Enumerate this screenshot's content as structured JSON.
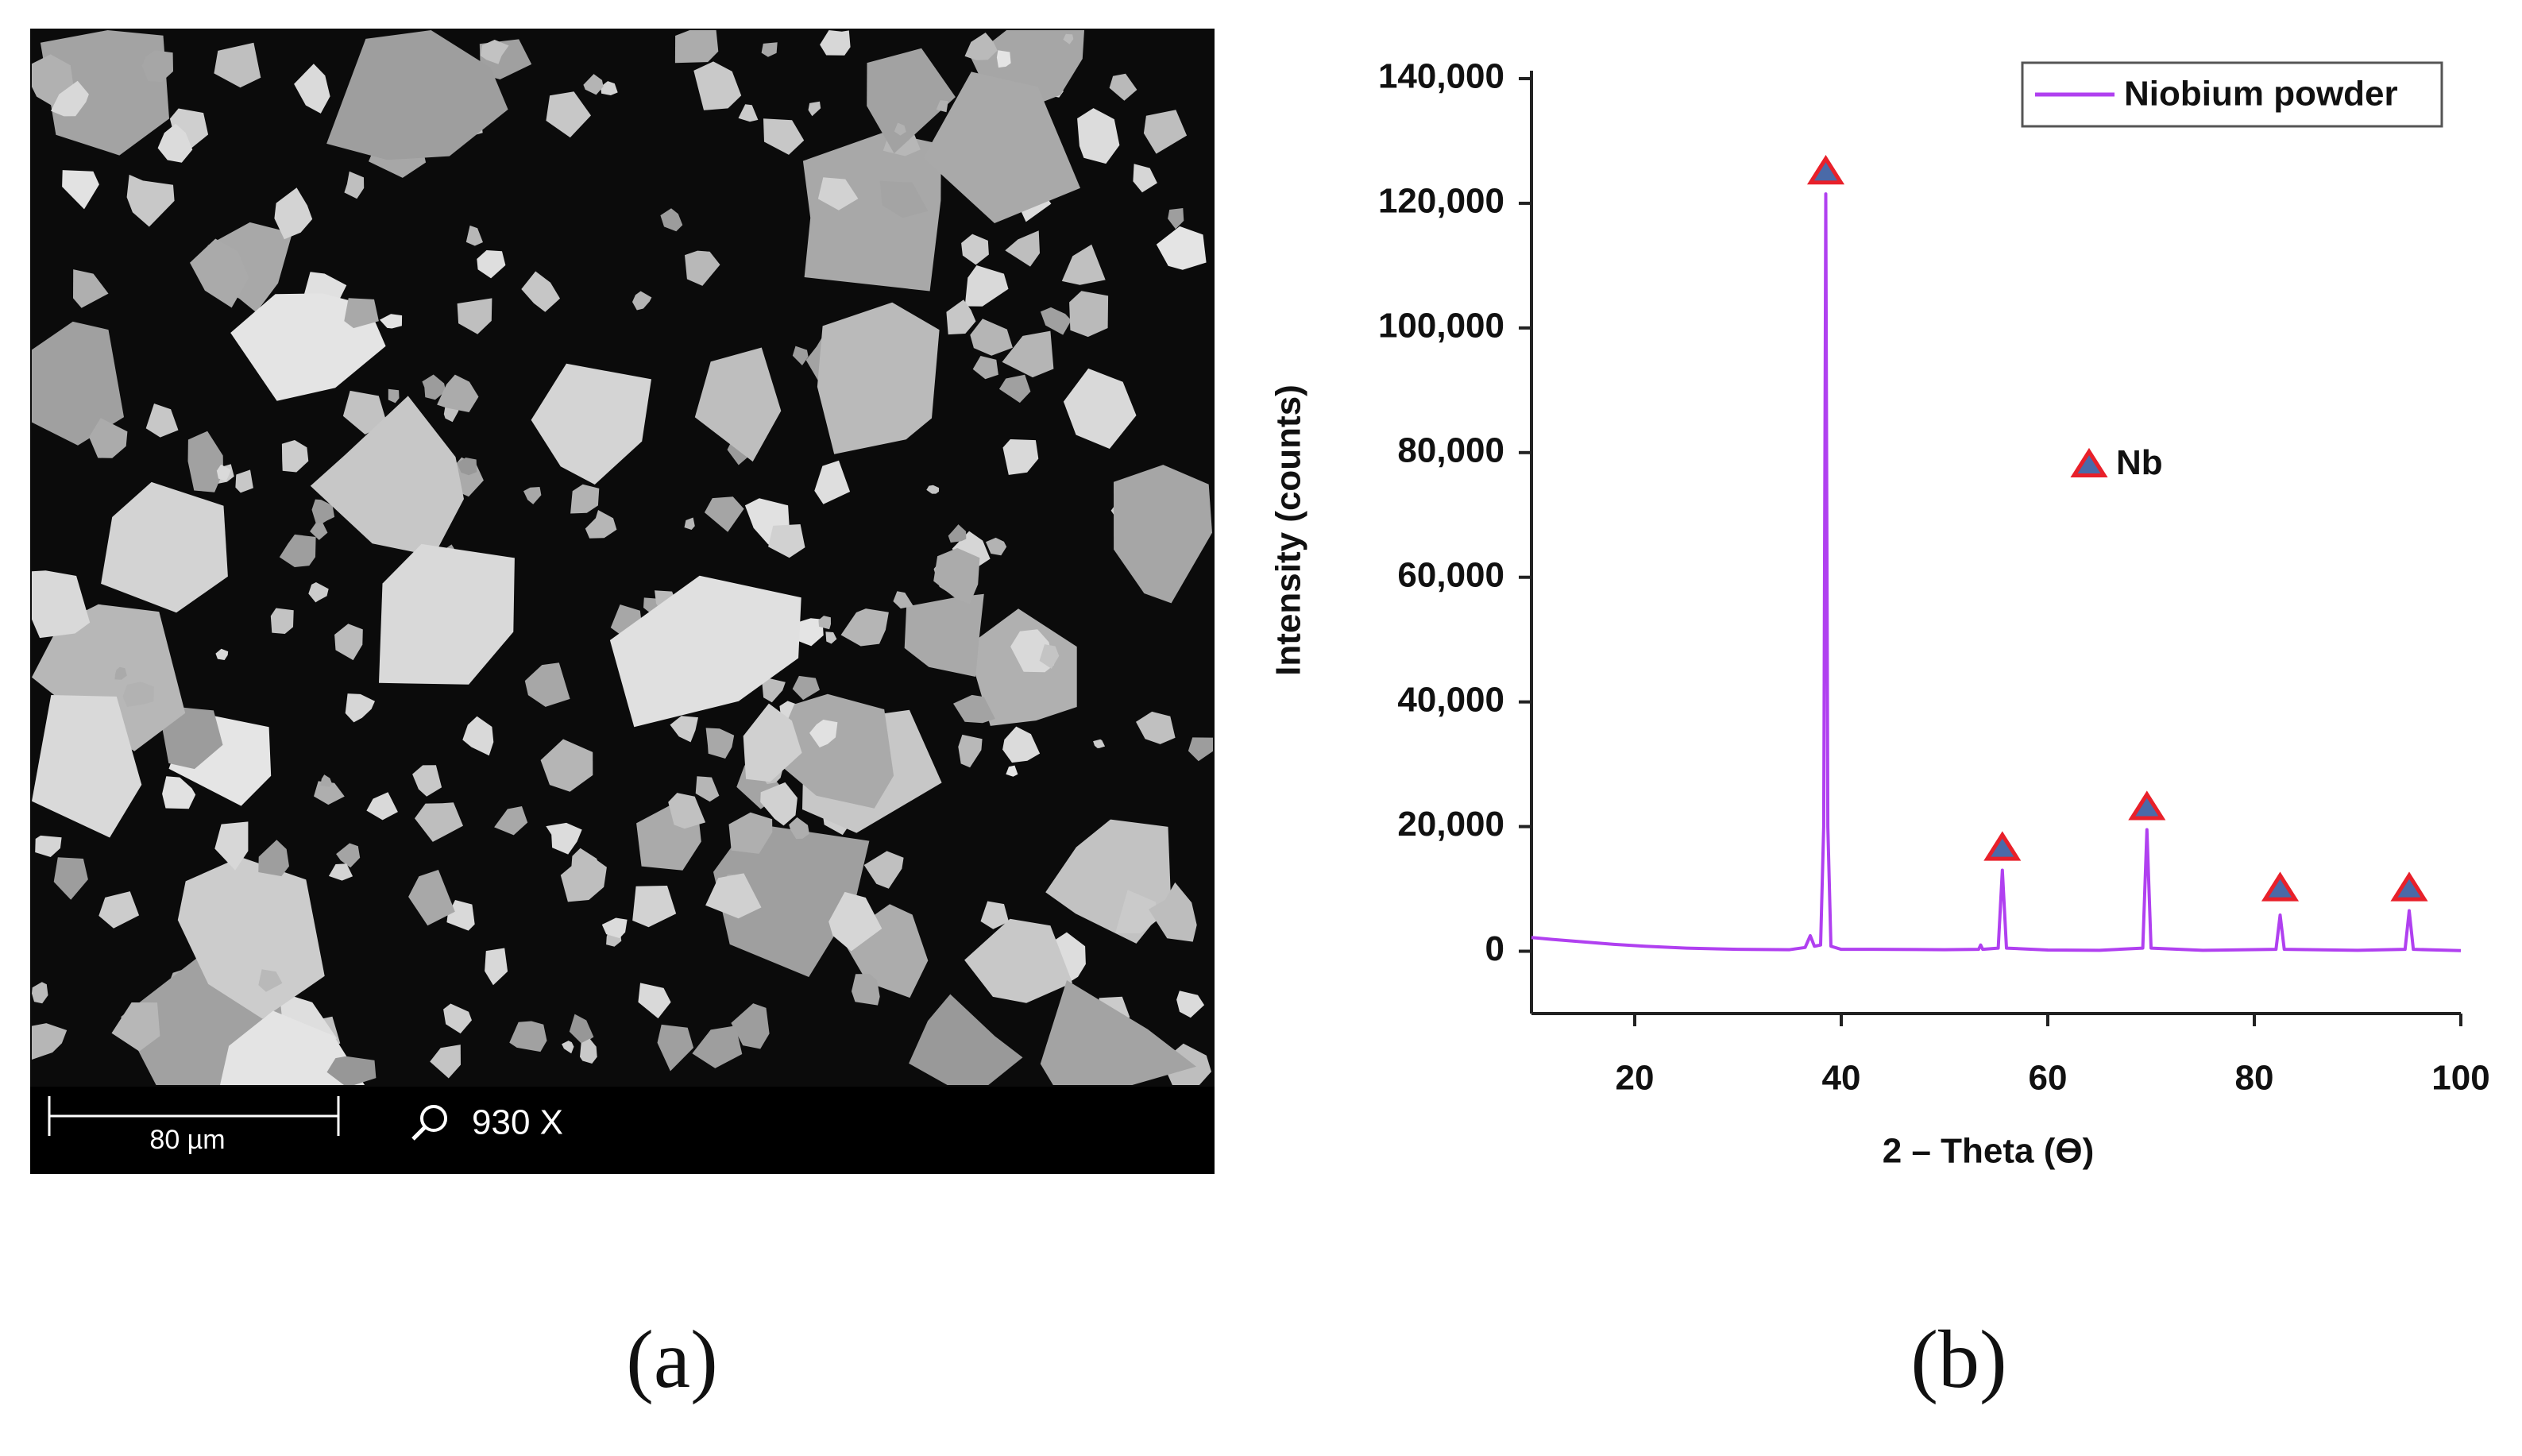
{
  "sem_image": {
    "scale_bar": "80 µm",
    "magnification": "930 X",
    "caption": "(a)"
  },
  "chart_data": {
    "type": "line",
    "caption": "(b)",
    "xlabel": "2 – Theta (Ɵ)",
    "ylabel": "Intensity (counts)",
    "x": [
      10,
      12,
      15,
      18,
      21,
      25,
      30,
      35,
      36.5,
      37,
      37.4,
      38,
      38.3,
      38.5,
      38.7,
      39,
      40,
      43,
      50,
      53.3,
      53.5,
      53.7,
      55.2,
      55.6,
      56,
      60,
      65,
      69.2,
      69.6,
      70,
      75,
      82.1,
      82.5,
      82.9,
      90,
      94.6,
      95,
      95.4,
      100
    ],
    "series": [
      {
        "name": "Niobium powder",
        "color": "#b040f0",
        "values": [
          2200,
          1900,
          1500,
          1100,
          800,
          500,
          300,
          250,
          600,
          2500,
          800,
          1000,
          20000,
          121500,
          20000,
          800,
          300,
          300,
          250,
          300,
          1000,
          300,
          500,
          13000,
          500,
          200,
          150,
          500,
          19500,
          500,
          150,
          300,
          5800,
          300,
          150,
          300,
          6500,
          300,
          100
        ]
      }
    ],
    "peak_markers": {
      "x": [
        38.5,
        55.6,
        69.6,
        82.5,
        95
      ],
      "y": [
        125000,
        16500,
        23000,
        10000,
        10000
      ]
    },
    "annotation": {
      "text": "Nb",
      "x": 64,
      "y": 78000
    },
    "xlim": [
      10,
      100
    ],
    "xticks": [
      20,
      40,
      60,
      80,
      100
    ],
    "ylim": [
      -10000,
      140000
    ],
    "yticks": [
      {
        "value": 0,
        "label": "0"
      },
      {
        "value": 20000,
        "label": "20,000"
      },
      {
        "value": 40000,
        "label": "40,000"
      },
      {
        "value": 60000,
        "label": "60,000"
      },
      {
        "value": 80000,
        "label": "80,000"
      },
      {
        "value": 100000,
        "label": "100,000"
      },
      {
        "value": 120000,
        "label": "120,000"
      },
      {
        "value": 140000,
        "label": "140,000"
      }
    ],
    "legend": "upper right",
    "grid": false
  }
}
